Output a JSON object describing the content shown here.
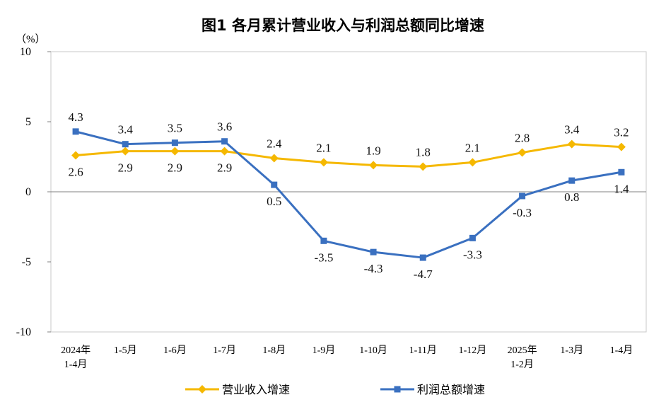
{
  "chart_data": {
    "type": "line",
    "title": "图1  各月累计营业收入与利润总额同比增速",
    "ylabel": "（%）",
    "ylim": [
      -10,
      10
    ],
    "yticks": [
      -10,
      -5,
      0,
      5,
      10
    ],
    "ytick_labels": [
      "-10",
      "-5",
      "0",
      "5",
      "10"
    ],
    "grid": false,
    "legend_position": "bottom",
    "categories": [
      [
        "2024年",
        "1-4月"
      ],
      [
        "1-5月"
      ],
      [
        "1-6月"
      ],
      [
        "1-7月"
      ],
      [
        "1-8月"
      ],
      [
        "1-9月"
      ],
      [
        "1-10月"
      ],
      [
        "1-11月"
      ],
      [
        "1-12月"
      ],
      [
        "2025年",
        "1-2月"
      ],
      [
        "1-3月"
      ],
      [
        "1-4月"
      ]
    ],
    "series": [
      {
        "name": "营业收入增速",
        "color": "#f5b800",
        "marker": "diamond",
        "values": [
          2.6,
          2.9,
          2.9,
          2.9,
          2.4,
          2.1,
          1.9,
          1.8,
          2.1,
          2.8,
          3.4,
          3.2
        ],
        "labels": [
          "2.6",
          "2.9",
          "2.9",
          "2.9",
          "2.4",
          "2.1",
          "1.9",
          "1.8",
          "2.1",
          "2.8",
          "3.4",
          "3.2"
        ]
      },
      {
        "name": "利润总额增速",
        "color": "#3a70c0",
        "marker": "square",
        "values": [
          4.3,
          3.4,
          3.5,
          3.6,
          0.5,
          -3.5,
          -4.3,
          -4.7,
          -3.3,
          -0.3,
          0.8,
          1.4
        ],
        "labels": [
          "4.3",
          "3.4",
          "3.5",
          "3.6",
          "0.5",
          "-3.5",
          "-4.3",
          "-4.7",
          "-3.3",
          "-0.3",
          "0.8",
          "1.4"
        ]
      }
    ]
  }
}
